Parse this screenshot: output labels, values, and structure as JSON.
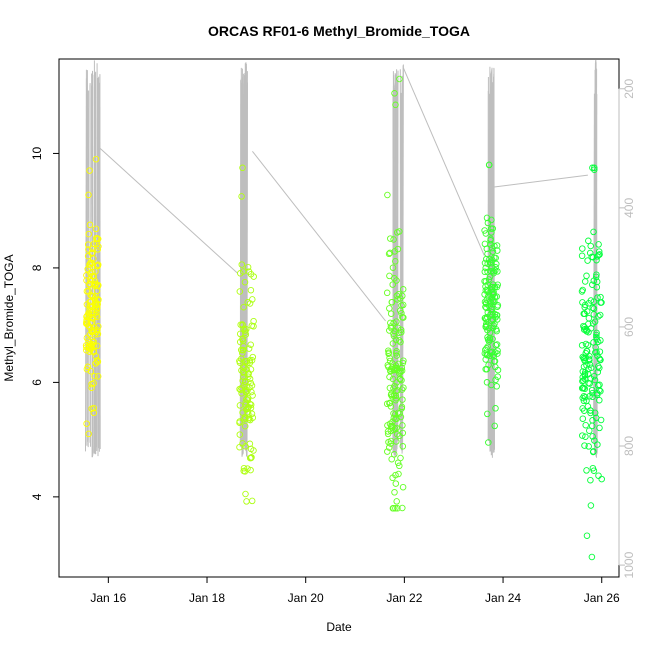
{
  "chart_data": {
    "type": "scatter",
    "title": "ORCAS RF01-6 Methyl_Bromide_TOGA",
    "xlabel": "Date",
    "ylabel": "Methyl_Bromide_TOGA",
    "x_ticks": [
      {
        "day": 16,
        "label": "Jan 16"
      },
      {
        "day": 18,
        "label": "Jan 18"
      },
      {
        "day": 20,
        "label": "Jan 20"
      },
      {
        "day": 22,
        "label": "Jan 22"
      },
      {
        "day": 24,
        "label": "Jan 24"
      },
      {
        "day": 26,
        "label": "Jan 26"
      }
    ],
    "xlim": [
      15.0,
      26.35
    ],
    "ylim": [
      2.6,
      11.65
    ],
    "y_ticks": [
      4,
      6,
      8,
      10
    ],
    "right_axis": {
      "ticks": [
        200,
        400,
        600,
        800,
        1000
      ],
      "lim": [
        1020,
        150
      ],
      "color": "#bebebe"
    },
    "grid": false,
    "legend": "none",
    "colors": {
      "point_start": "#ffff00",
      "point_end": "#00ff3c",
      "pressure_line": "#bebebe"
    },
    "flights": [
      {
        "t_start": 15.55,
        "t_end": 15.8,
        "y_mean": 7.3,
        "y_sd": 0.85,
        "y_min": 5.1,
        "y_max": 9.9,
        "n": 140,
        "outliers": [
          [
            15.62,
            9.7
          ],
          [
            15.75,
            9.9
          ],
          [
            15.6,
            5.1
          ]
        ]
      },
      {
        "t_start": 18.65,
        "t_end": 18.95,
        "y_mean": 6.1,
        "y_sd": 0.75,
        "y_min": 3.9,
        "y_max": 9.8,
        "n": 120,
        "outliers": [
          [
            18.78,
            4.05
          ],
          [
            18.8,
            3.92
          ],
          [
            18.72,
            9.75
          ],
          [
            18.7,
            9.25
          ],
          [
            18.75,
            4.5
          ]
        ]
      },
      {
        "t_start": 21.65,
        "t_end": 21.98,
        "y_mean": 6.2,
        "y_sd": 1.1,
        "y_min": 3.8,
        "y_max": 11.35,
        "n": 150,
        "outliers": [
          [
            21.9,
            11.3
          ],
          [
            21.8,
            11.05
          ],
          [
            21.82,
            10.85
          ],
          [
            21.78,
            3.8
          ],
          [
            21.82,
            4.38
          ],
          [
            21.88,
            4.4
          ],
          [
            21.8,
            4.08
          ]
        ]
      },
      {
        "t_start": 23.62,
        "t_end": 23.9,
        "y_mean": 7.3,
        "y_sd": 0.75,
        "y_min": 4.9,
        "y_max": 9.8,
        "n": 150,
        "outliers": [
          [
            23.72,
            9.8
          ],
          [
            23.7,
            4.95
          ],
          [
            23.68,
            5.45
          ]
        ]
      },
      {
        "t_start": 25.6,
        "t_end": 26.0,
        "y_mean": 6.6,
        "y_sd": 1.1,
        "y_min": 2.95,
        "y_max": 9.75,
        "n": 160,
        "outliers": [
          [
            25.85,
            9.75
          ],
          [
            25.8,
            2.95
          ],
          [
            25.78,
            3.85
          ],
          [
            25.82,
            4.5
          ]
        ]
      }
    ],
    "pressure_series": {
      "profile_columns": [
        {
          "x0": 15.55,
          "x1": 15.83
        },
        {
          "x0": 18.68,
          "x1": 18.82
        },
        {
          "x0": 21.73,
          "x1": 22.0
        },
        {
          "x0": 23.7,
          "x1": 23.82
        },
        {
          "x0": 25.85,
          "x1": 25.9
        }
      ],
      "transit_lines": [
        [
          [
            15.83,
            300
          ],
          [
            18.62,
            510
          ]
        ],
        [
          [
            18.92,
            305
          ],
          [
            21.62,
            590
          ]
        ],
        [
          [
            21.98,
            165
          ],
          [
            23.62,
            480
          ]
        ],
        [
          [
            23.82,
            365
          ],
          [
            25.72,
            345
          ]
        ]
      ]
    }
  }
}
